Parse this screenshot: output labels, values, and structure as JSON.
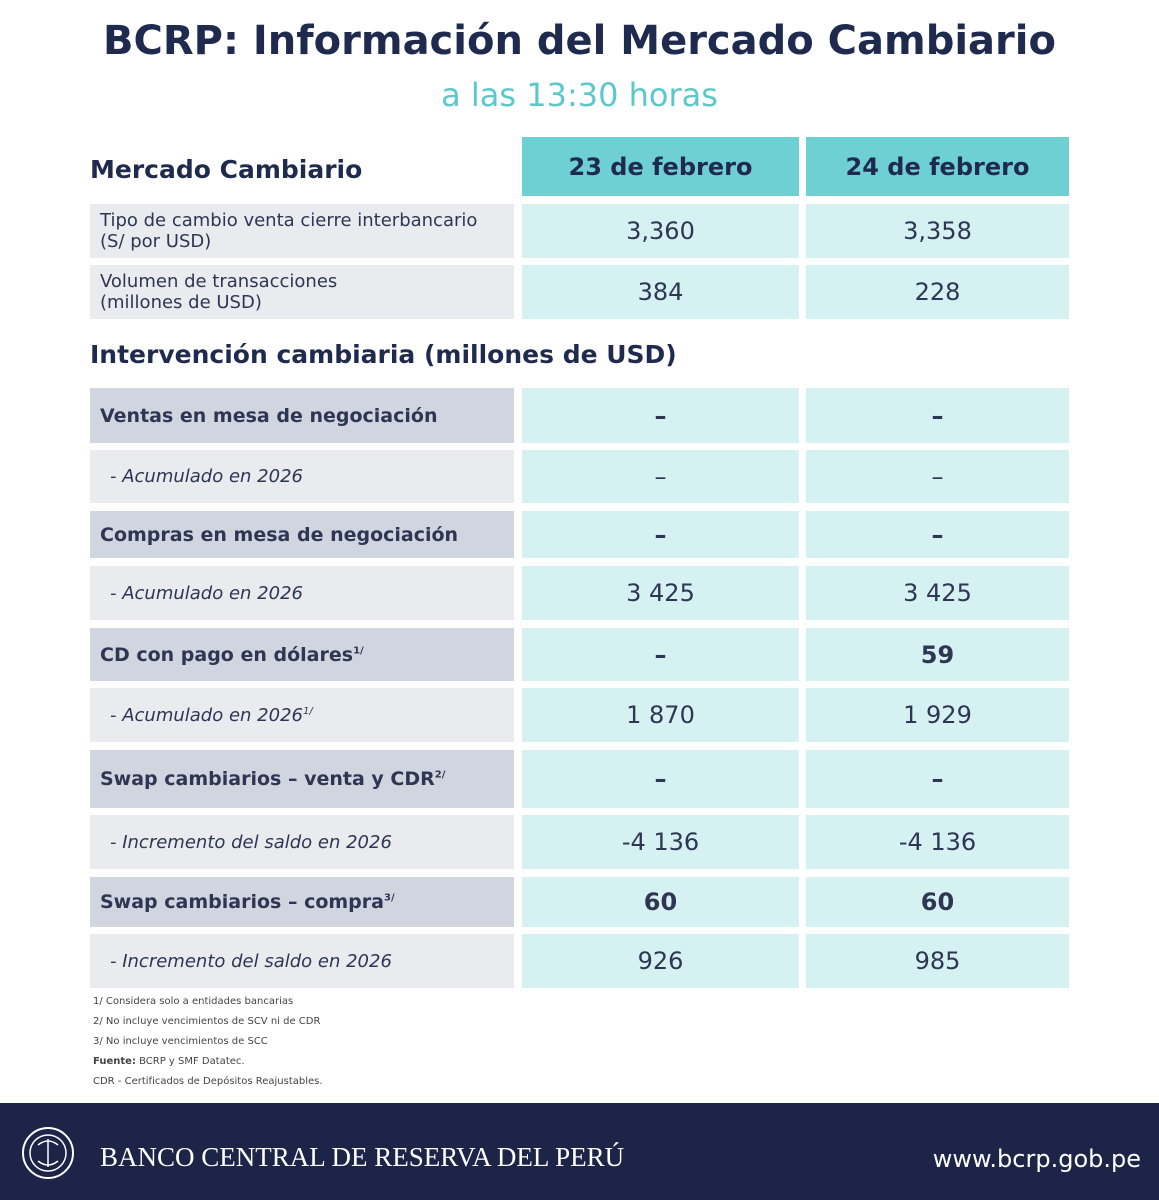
{
  "header": {
    "title": "BCRP: Información del Mercado Cambiario",
    "subtitle": "a las 13:30 horas"
  },
  "market": {
    "title": "Mercado Cambiario",
    "columns": [
      "23 de febrero",
      "24 de febrero"
    ],
    "rows": [
      {
        "label": [
          "Tipo de cambio venta cierre interbancario",
          "(S/ por USD)"
        ],
        "values": [
          "3,360",
          "3,358"
        ]
      },
      {
        "label": [
          "Volumen de transacciones",
          "(millones de USD)"
        ],
        "values": [
          "384",
          "228"
        ]
      }
    ]
  },
  "intervention": {
    "title": "Intervención cambiaria (millones de USD)",
    "rows": [
      {
        "kind": "main",
        "label": "Ventas en mesa de negociación",
        "values": [
          "–",
          "–"
        ]
      },
      {
        "kind": "sub",
        "label": "- Acumulado en 2026",
        "values": [
          "–",
          "–"
        ]
      },
      {
        "kind": "main",
        "label": "Compras en mesa de negociación",
        "values": [
          "–",
          "–"
        ]
      },
      {
        "kind": "sub",
        "label": "- Acumulado en 2026",
        "values": [
          "3 425",
          "3 425"
        ]
      },
      {
        "kind": "main",
        "label": "CD con pago en dólares",
        "note": "1/",
        "values": [
          "–",
          "59"
        ]
      },
      {
        "kind": "sub",
        "label": "- Acumulado en 2026",
        "note": "1/",
        "values": [
          "1 870",
          "1 929"
        ]
      },
      {
        "kind": "main",
        "label": "Swap cambiarios – venta y CDR",
        "note": "2/",
        "values": [
          "–",
          "–"
        ]
      },
      {
        "kind": "sub",
        "label": "- Incremento del saldo en 2026",
        "values": [
          "-4 136",
          "-4 136"
        ]
      },
      {
        "kind": "main",
        "label": "Swap cambiarios – compra",
        "note": "3/",
        "values": [
          "60",
          "60"
        ]
      },
      {
        "kind": "sub",
        "label": "- Incremento del saldo en 2026",
        "values": [
          "926",
          "985"
        ]
      }
    ]
  },
  "footnotes": {
    "notes": [
      "1/ Considera solo a entidades bancarias",
      "2/ No incluye vencimientos de SCV ni de CDR",
      "3/ No incluye vencimientos de SCC"
    ],
    "source_label": "Fuente:",
    "source": "BCRP y SMF Datatec.",
    "cdr": "CDR - Certificados de Depósitos Reajustables."
  },
  "footer": {
    "bank": "BANCO CENTRAL DE RESERVA DEL PERÚ",
    "url": "www.bcrp.gob.pe"
  }
}
